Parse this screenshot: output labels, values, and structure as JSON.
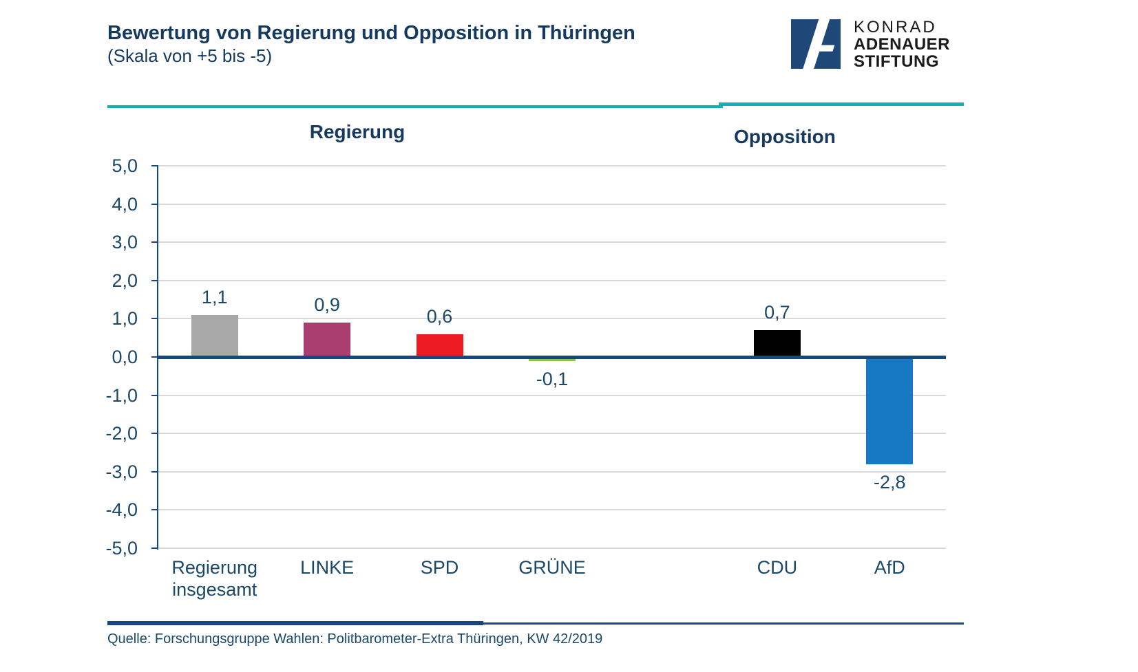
{
  "header": {
    "title": "Bewertung von Regierung und Opposition in Thüringen",
    "subtitle": "(Skala von +5 bis -5)"
  },
  "logo": {
    "line1": "KONRAD",
    "line2": "ADENAUER",
    "line3": "STIFTUNG",
    "square_color": "#1e4878"
  },
  "groups": {
    "left_label": "Regierung",
    "right_label": "Opposition"
  },
  "chart_data": {
    "type": "bar",
    "title": "Bewertung von Regierung und Opposition in Thüringen",
    "scale_note": "Skala von +5 bis -5",
    "ylim": [
      -5,
      5
    ],
    "ytick_step": 1,
    "ytick_labels": [
      "5,0",
      "4,0",
      "3,0",
      "2,0",
      "1,0",
      "0,0",
      "-1,0",
      "-2,0",
      "-3,0",
      "-4,0",
      "-5,0"
    ],
    "grid": true,
    "legend": "none",
    "categories": [
      "Regierung insgesamt",
      "LINKE",
      "SPD",
      "GRÜNE",
      "",
      "CDU",
      "AfD"
    ],
    "values": [
      1.1,
      0.9,
      0.6,
      -0.1,
      null,
      0.7,
      -2.8
    ],
    "value_labels": [
      "1,1",
      "0,9",
      "0,6",
      "-0,1",
      "",
      "0,7",
      "-2,8"
    ],
    "bar_colors": [
      "#a8a8a8",
      "#ab3d6f",
      "#ed1c24",
      "#8cc152",
      "",
      "#000000",
      "#1779c1"
    ],
    "group_of_category": [
      "Regierung",
      "Regierung",
      "Regierung",
      "Regierung",
      "",
      "Opposition",
      "Opposition"
    ]
  },
  "source": {
    "text": "Quelle: Forschungsgruppe Wahlen: Politbarometer-Extra Thüringen, KW 42/2019"
  },
  "colors": {
    "text_navy": "#1c4868",
    "title_navy": "#163a5f",
    "teal": "#14afb6",
    "rule_navy": "#17477d",
    "gridline": "#d9d9d9"
  }
}
